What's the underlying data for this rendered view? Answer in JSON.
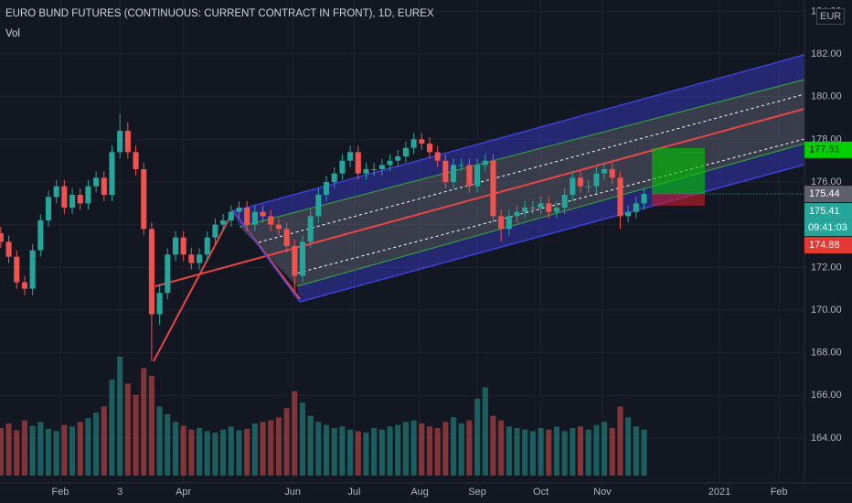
{
  "chart_data": {
    "type": "candlestick",
    "title": "EURO BUND FUTURES (CONTINUOUS: CURRENT CONTRACT IN FRONT), 1D, EUREX",
    "indicator": "Vol",
    "currency": "EUR",
    "x": [
      3,
      7,
      11,
      15,
      19,
      23,
      27,
      31,
      35,
      39,
      43,
      47,
      51,
      55,
      59,
      63,
      67,
      71,
      75,
      79,
      83,
      87,
      91,
      95,
      99,
      103,
      107,
      111,
      115,
      119,
      123,
      127,
      131,
      135,
      139,
      143,
      147,
      151,
      155,
      159,
      163,
      167,
      171,
      175,
      179,
      183,
      187,
      191,
      195,
      199,
      203,
      207,
      211,
      215,
      219,
      223,
      227,
      231,
      235,
      239,
      243,
      247,
      251,
      255,
      259,
      263,
      267,
      271,
      275,
      279,
      283,
      287,
      291,
      295,
      299,
      303,
      307,
      311,
      315,
      319,
      323,
      327
    ],
    "open": [
      173.6,
      173.2,
      172.5,
      171.3,
      171.0,
      172.8,
      174.2,
      175.3,
      175.8,
      174.8,
      175.4,
      175.0,
      175.8,
      176.2,
      175.4,
      177.4,
      178.4,
      177.4,
      176.6,
      173.8,
      169.8,
      170.8,
      172.6,
      173.4,
      172.6,
      172.2,
      172.6,
      173.4,
      174.0,
      174.2,
      174.6,
      174.8,
      174.0,
      174.6,
      174.4,
      174.0,
      173.8,
      173.0,
      171.6,
      173.2,
      174.4,
      175.4,
      176.0,
      176.4,
      177.0,
      177.4,
      176.4,
      176.6,
      176.6,
      176.8,
      177.0,
      177.2,
      177.6,
      178.0,
      177.8,
      177.4,
      177.0,
      176.0,
      176.8,
      176.8,
      175.8,
      176.8,
      177.0,
      174.4,
      173.8,
      174.4,
      174.6,
      174.8,
      174.8,
      175.0,
      174.6,
      174.8,
      175.4,
      176.2,
      175.8,
      175.8,
      176.4,
      176.6,
      176.2,
      174.4,
      174.6,
      175.0
    ],
    "high": [
      173.9,
      173.5,
      172.8,
      171.6,
      173.1,
      174.5,
      175.6,
      176.1,
      176.1,
      175.7,
      175.7,
      176.1,
      176.5,
      176.5,
      177.7,
      179.2,
      178.8,
      177.7,
      176.9,
      174.1,
      171.2,
      172.9,
      173.7,
      173.7,
      172.9,
      172.9,
      173.7,
      174.3,
      174.5,
      174.9,
      175.1,
      175.1,
      174.9,
      174.9,
      174.7,
      174.3,
      174.1,
      173.3,
      173.5,
      174.7,
      175.7,
      176.3,
      176.7,
      177.3,
      177.7,
      177.7,
      176.9,
      176.9,
      177.1,
      177.3,
      177.5,
      177.9,
      178.3,
      178.3,
      178.1,
      177.7,
      177.3,
      177.1,
      177.1,
      177.1,
      177.1,
      177.3,
      177.3,
      174.7,
      174.7,
      174.9,
      175.1,
      175.1,
      175.3,
      175.3,
      175.1,
      175.7,
      176.5,
      176.5,
      176.1,
      176.7,
      176.9,
      176.9,
      176.5,
      174.9,
      175.3,
      175.7
    ],
    "low": [
      172.9,
      172.2,
      171.0,
      170.7,
      170.7,
      172.5,
      173.9,
      175.0,
      174.5,
      174.5,
      174.7,
      174.7,
      175.5,
      175.1,
      175.1,
      177.1,
      177.1,
      176.3,
      173.5,
      167.6,
      169.3,
      170.5,
      172.3,
      172.3,
      171.9,
      171.9,
      172.3,
      173.1,
      173.7,
      173.9,
      174.3,
      173.7,
      173.7,
      174.1,
      173.7,
      173.5,
      172.7,
      170.9,
      171.3,
      172.9,
      174.1,
      175.1,
      175.7,
      176.1,
      176.7,
      176.1,
      176.1,
      176.3,
      176.3,
      176.5,
      176.7,
      176.9,
      177.3,
      177.5,
      177.1,
      176.7,
      175.7,
      175.7,
      176.5,
      175.5,
      175.5,
      176.5,
      174.1,
      173.2,
      173.5,
      174.1,
      174.3,
      174.5,
      174.5,
      174.3,
      174.3,
      174.5,
      175.1,
      175.5,
      175.5,
      175.5,
      176.1,
      175.9,
      173.8,
      174.1,
      174.3,
      174.7
    ],
    "close": [
      173.2,
      172.5,
      171.3,
      171.0,
      172.8,
      174.2,
      175.3,
      175.8,
      174.8,
      175.4,
      175.0,
      175.8,
      176.2,
      175.4,
      177.4,
      178.4,
      177.4,
      176.6,
      173.8,
      169.8,
      170.8,
      172.6,
      173.4,
      172.6,
      172.2,
      172.6,
      173.4,
      174.0,
      174.2,
      174.6,
      174.8,
      174.0,
      174.6,
      174.4,
      174.0,
      173.8,
      173.0,
      171.6,
      173.2,
      174.4,
      175.4,
      176.0,
      176.4,
      177.0,
      177.4,
      176.4,
      176.6,
      176.6,
      176.8,
      177.0,
      177.2,
      177.6,
      178.0,
      177.8,
      177.4,
      177.0,
      176.0,
      176.8,
      176.8,
      175.8,
      176.8,
      177.0,
      174.4,
      173.8,
      174.4,
      174.6,
      174.8,
      174.8,
      175.0,
      174.6,
      174.8,
      175.4,
      176.2,
      175.8,
      175.8,
      176.4,
      176.6,
      176.2,
      174.4,
      174.6,
      175.0,
      175.44
    ],
    "volume": [
      620,
      680,
      590,
      720,
      650,
      700,
      610,
      580,
      660,
      640,
      700,
      750,
      820,
      900,
      1250,
      1550,
      1200,
      1050,
      1400,
      1300,
      900,
      800,
      700,
      650,
      600,
      620,
      580,
      560,
      600,
      640,
      590,
      610,
      680,
      700,
      720,
      760,
      880,
      1100,
      950,
      780,
      700,
      660,
      620,
      640,
      600,
      580,
      560,
      620,
      600,
      640,
      660,
      700,
      720,
      680,
      640,
      620,
      700,
      760,
      680,
      720,
      1000,
      1150,
      780,
      720,
      640,
      620,
      600,
      580,
      620,
      600,
      640,
      580,
      620,
      640,
      600,
      660,
      700,
      620,
      900,
      760,
      640,
      600
    ],
    "up_color": "#26a69a",
    "down_color": "#ef5350",
    "xlim": [
      2.6,
      407.8
    ],
    "xticks": [
      {
        "value": 33,
        "label": "Feb"
      },
      {
        "value": 63,
        "label": "3"
      },
      {
        "value": 95,
        "label": "Apr"
      },
      {
        "value": 150,
        "label": "Jun"
      },
      {
        "value": 181,
        "label": "Jul"
      },
      {
        "value": 214,
        "label": "Aug"
      },
      {
        "value": 243,
        "label": "Sep"
      },
      {
        "value": 275,
        "label": "Oct"
      },
      {
        "value": 306,
        "label": "Nov"
      },
      {
        "value": 365,
        "label": "2021"
      },
      {
        "value": 395,
        "label": "Feb"
      }
    ],
    "ylim": [
      161.9,
      184.53
    ],
    "yticks": [
      {
        "value": 164,
        "label": "164.00"
      },
      {
        "value": 166,
        "label": "166.00"
      },
      {
        "value": 168,
        "label": "168.00"
      },
      {
        "value": 170,
        "label": "170.00"
      },
      {
        "value": 172,
        "label": "172.00"
      },
      {
        "value": 174,
        "label": "174.00"
      },
      {
        "value": 176,
        "label": "176.00"
      },
      {
        "value": 178,
        "label": "178.00"
      },
      {
        "value": 180,
        "label": "180.00"
      },
      {
        "value": 182,
        "label": "182.00"
      },
      {
        "value": 184,
        "label": "184.00"
      }
    ],
    "grid": true,
    "price_labels": [
      {
        "value": 177.51,
        "color": "#00d000"
      },
      {
        "value": 175.44,
        "color": "#5d606b"
      },
      {
        "value": 175.41,
        "color": "#26a69a"
      },
      {
        "value": 174.88,
        "color": "#e53935"
      }
    ],
    "countdown": "09:41:03"
  }
}
